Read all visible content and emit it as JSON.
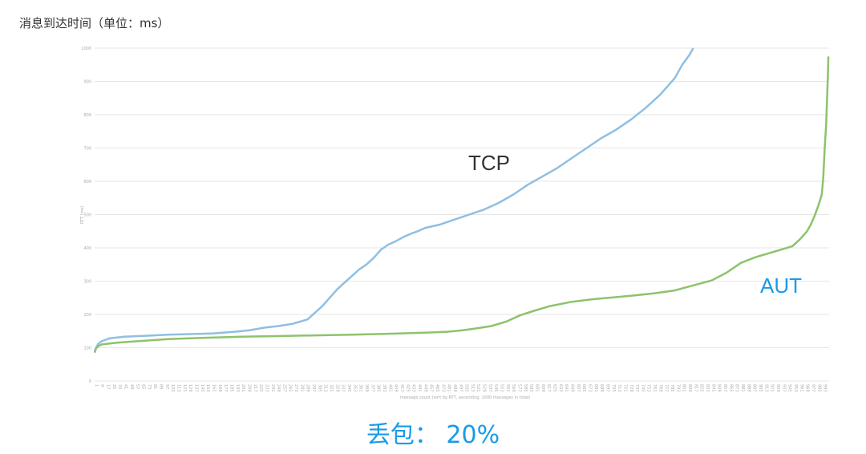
{
  "page_title": "消息到达时间（单位：ms）",
  "footer_note": "丢包： 20%",
  "chart_data": {
    "type": "line",
    "title": "",
    "xlabel": "message count (sort by RTT, ascending, 1000 messages in total)",
    "ylabel": "RTT (ms)",
    "xlim": [
      0,
      1000
    ],
    "ylim": [
      0,
      1000
    ],
    "yticks": [
      0,
      100,
      200,
      300,
      400,
      500,
      600,
      700,
      800,
      900,
      1000
    ],
    "grid": true,
    "series": [
      {
        "name": "TCP",
        "color": "#8fbfe2",
        "label_color": "#333333",
        "x": [
          0,
          2,
          5,
          10,
          20,
          40,
          70,
          100,
          130,
          160,
          190,
          210,
          230,
          250,
          270,
          290,
          310,
          320,
          330,
          340,
          350,
          360,
          370,
          380,
          390,
          400,
          410,
          420,
          430,
          440,
          450,
          470,
          490,
          510,
          530,
          550,
          570,
          590,
          610,
          630,
          650,
          670,
          690,
          710,
          730,
          750,
          770,
          790,
          800,
          810,
          815
        ],
        "values": [
          90,
          100,
          112,
          120,
          128,
          133,
          136,
          139,
          141,
          143,
          148,
          152,
          160,
          165,
          172,
          185,
          225,
          250,
          275,
          295,
          315,
          335,
          350,
          370,
          395,
          410,
          420,
          432,
          442,
          450,
          460,
          470,
          485,
          500,
          515,
          535,
          560,
          590,
          615,
          640,
          670,
          700,
          730,
          755,
          785,
          820,
          860,
          910,
          950,
          980,
          1000
        ]
      },
      {
        "name": "AUT",
        "color": "#8cc36c",
        "label_color": "#1a9ae6",
        "x": [
          0,
          2,
          5,
          10,
          30,
          60,
          100,
          150,
          200,
          250,
          300,
          350,
          400,
          450,
          480,
          500,
          520,
          540,
          560,
          580,
          600,
          620,
          650,
          680,
          700,
          730,
          760,
          790,
          820,
          840,
          860,
          880,
          900,
          920,
          935,
          950,
          960,
          970,
          975,
          980,
          985,
          988,
          990,
          992,
          994,
          996,
          998,
          999
        ],
        "values": [
          85,
          98,
          105,
          110,
          115,
          120,
          126,
          130,
          133,
          135,
          137,
          139,
          142,
          145,
          148,
          152,
          158,
          165,
          178,
          198,
          212,
          225,
          238,
          246,
          250,
          256,
          263,
          272,
          290,
          302,
          325,
          355,
          372,
          385,
          395,
          405,
          425,
          450,
          470,
          495,
          525,
          545,
          560,
          610,
          700,
          770,
          900,
          975
        ]
      }
    ]
  }
}
